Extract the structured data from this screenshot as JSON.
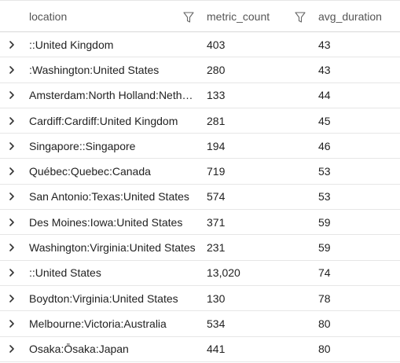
{
  "columns": {
    "location": "location",
    "metric_count": "metric_count",
    "avg_duration": "avg_duration"
  },
  "rows": [
    {
      "location": "::United Kingdom",
      "metric_count": "403",
      "avg_duration": "43"
    },
    {
      "location": ":Washington:United States",
      "metric_count": "280",
      "avg_duration": "43"
    },
    {
      "location": "Amsterdam:North Holland:Netherlands",
      "metric_count": "133",
      "avg_duration": "44"
    },
    {
      "location": "Cardiff:Cardiff:United Kingdom",
      "metric_count": "281",
      "avg_duration": "45"
    },
    {
      "location": "Singapore::Singapore",
      "metric_count": "194",
      "avg_duration": "46"
    },
    {
      "location": "Québec:Quebec:Canada",
      "metric_count": "719",
      "avg_duration": "53"
    },
    {
      "location": "San Antonio:Texas:United States",
      "metric_count": "574",
      "avg_duration": "53"
    },
    {
      "location": "Des Moines:Iowa:United States",
      "metric_count": "371",
      "avg_duration": "59"
    },
    {
      "location": "Washington:Virginia:United States",
      "metric_count": "231",
      "avg_duration": "59"
    },
    {
      "location": "::United States",
      "metric_count": "13,020",
      "avg_duration": "74"
    },
    {
      "location": "Boydton:Virginia:United States",
      "metric_count": "130",
      "avg_duration": "78"
    },
    {
      "location": "Melbourne:Victoria:Australia",
      "metric_count": "534",
      "avg_duration": "80"
    },
    {
      "location": "Osaka:Ōsaka:Japan",
      "metric_count": "441",
      "avg_duration": "80"
    }
  ],
  "icons": {
    "filter": "filter-icon",
    "expand": "chevron-right-icon"
  },
  "colors": {
    "text": "#222222",
    "header_text": "#555555",
    "border": "#e6e6e6"
  }
}
